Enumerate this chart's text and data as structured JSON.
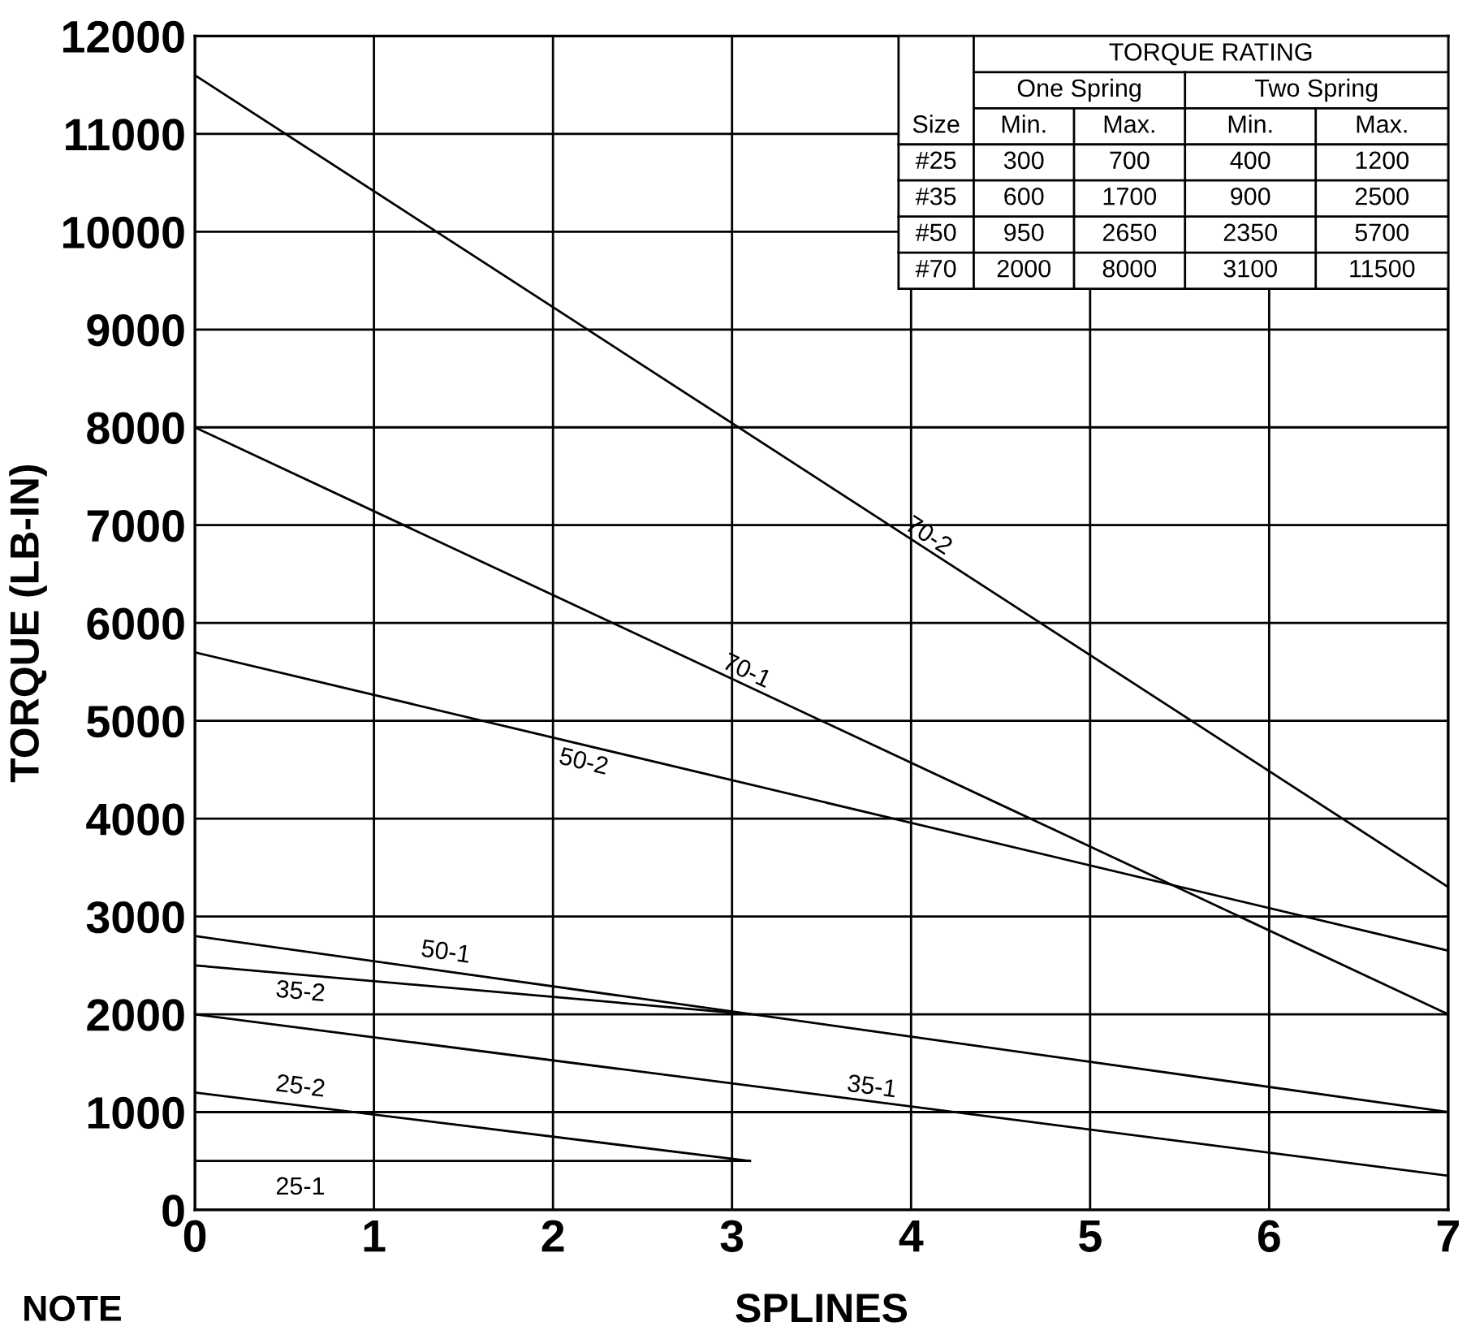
{
  "chart_data": {
    "type": "line",
    "xlabel": "SPLINES",
    "ylabel": "TORQUE (LB-IN)",
    "xlim": [
      0,
      7
    ],
    "xticks": [
      0,
      1,
      2,
      3,
      4,
      5,
      6,
      7
    ],
    "ylim": [
      0,
      12000
    ],
    "yticks": [
      0,
      1000,
      2000,
      3000,
      4000,
      5000,
      6000,
      7000,
      8000,
      9000,
      10000,
      11000,
      12000
    ],
    "grid": true,
    "legend": false,
    "marker": "none",
    "line_style": "solid",
    "series": [
      {
        "name": "70-2",
        "color": "#000000",
        "x": [
          0,
          7
        ],
        "values": [
          11600,
          3300
        ]
      },
      {
        "name": "70-1",
        "color": "#000000",
        "x": [
          0,
          7
        ],
        "values": [
          8000,
          2000
        ]
      },
      {
        "name": "50-2",
        "color": "#000000",
        "x": [
          0,
          7
        ],
        "values": [
          5700,
          2650
        ]
      },
      {
        "name": "50-1",
        "color": "#000000",
        "x": [
          0,
          7
        ],
        "values": [
          2800,
          1000
        ]
      },
      {
        "name": "35-2",
        "color": "#000000",
        "x": [
          0,
          3.1
        ],
        "values": [
          2500,
          2000
        ]
      },
      {
        "name": "35-1",
        "color": "#000000",
        "x": [
          0,
          7
        ],
        "values": [
          2000,
          350
        ]
      },
      {
        "name": "25-2",
        "color": "#000000",
        "x": [
          0,
          3.1
        ],
        "values": [
          1200,
          500
        ]
      },
      {
        "name": "25-1",
        "color": "#000000",
        "x": [
          0,
          3.1
        ],
        "values": [
          500,
          500
        ]
      }
    ],
    "annotations": [
      "NOTE",
      "TORQUE RATING",
      "One Spring",
      "Two Spring",
      "Size",
      "Min.",
      "Max.",
      "Min.",
      "Max.",
      "#25",
      "300",
      "700",
      "400",
      "1200",
      "#35",
      "600",
      "1700",
      "900",
      "2500",
      "#50",
      "950",
      "2650",
      "2350",
      "5700",
      "#70",
      "2000",
      "8000",
      "3100",
      "11500"
    ]
  }
}
